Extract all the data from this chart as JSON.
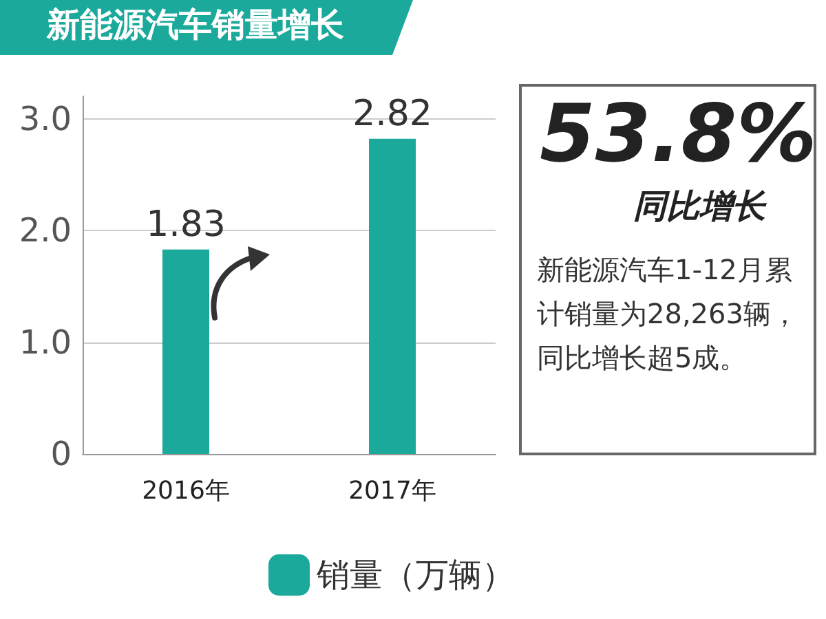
{
  "chart_data": {
    "type": "bar",
    "title": "新能源汽车销量增长",
    "categories": [
      "2016年",
      "2017年"
    ],
    "series": [
      {
        "name": "销量（万辆）",
        "color": "#1aa99a",
        "values": [
          1.83,
          2.82
        ]
      }
    ],
    "ylim": [
      0,
      3.2
    ],
    "yticks": [
      0,
      {
        "value": 1,
        "label": "1.0"
      },
      {
        "value": 2,
        "label": "2.0"
      },
      {
        "value": 3,
        "label": "3.0"
      }
    ],
    "grid": "y",
    "data_labels": true,
    "legend": "bottom",
    "annotations": [
      "53.8%",
      "同比增长",
      "新能源汽车1-12月累计销量为28,263辆，同比增长超5成。"
    ]
  }
}
